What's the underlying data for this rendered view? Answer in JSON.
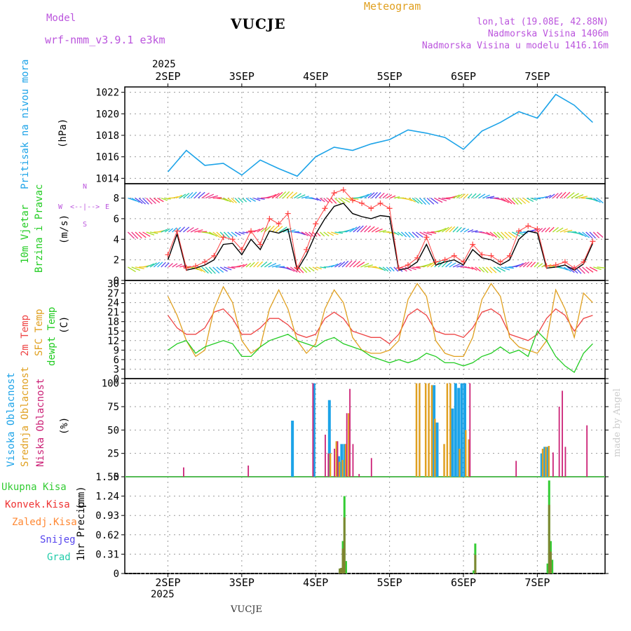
{
  "header": {
    "model_label": "Model",
    "model_name": "wrf-nmm_v3.9.1 e3km",
    "station": "VUCJE",
    "meteogram": "Meteogram",
    "lonlat": "lon,lat (19.08E, 42.88N)",
    "elevation": "Nadmorska Visina 1406m",
    "model_elevation": "Nadmorska Visina u modelu 1416.16m",
    "year": "2025",
    "footer_station": "VUCJE",
    "watermark": "made by Angel"
  },
  "colors": {
    "pressure": "#1ca3e8",
    "wind_speed": "#000000",
    "gust": "#ff4040",
    "t2m": "#ee4444",
    "sfc": "#e0a020",
    "dew": "#22cc22",
    "high": "#1ca3e8",
    "mid": "#e0a020",
    "low": "#cc2277",
    "precip_total": "#33cc33",
    "precip_conv": "#ee3333",
    "precip_frz": "#ff8833",
    "snow": "#5544ee",
    "hail": "#22ccaa",
    "purple": "#bb55dd"
  },
  "chart_data": [
    {
      "type": "line",
      "id": "pressure",
      "ylabel_main": "Pritisak na nivou mora",
      "ylabel_unit": "(hPa)",
      "ylim": [
        1013.5,
        1022.5
      ],
      "yticks": [
        1014,
        1016,
        1018,
        1020,
        1022
      ],
      "days": [
        "2SEP",
        "3SEP",
        "4SEP",
        "5SEP",
        "6SEP",
        "7SEP"
      ],
      "x_hours": [
        0,
        6,
        12,
        18,
        24,
        30,
        36,
        42,
        48,
        54,
        60,
        66,
        72,
        78,
        84,
        90,
        96,
        102,
        108,
        114,
        120,
        126,
        132,
        138
      ],
      "series": [
        {
          "name": "MSLP",
          "values": [
            1014.6,
            1016.6,
            1015.2,
            1015.4,
            1014.3,
            1015.7,
            1014.9,
            1014.2,
            1016.0,
            1016.9,
            1016.6,
            1017.2,
            1017.6,
            1018.5,
            1018.2,
            1017.8,
            1016.7,
            1018.4,
            1019.2,
            1020.2,
            1019.6,
            1021.8,
            1020.8,
            1019.2
          ]
        }
      ]
    },
    {
      "type": "line",
      "id": "wind",
      "ylabel_main": "10m Vjetar",
      "ylabel_main2": "Brzina i Pravac",
      "ylabel_unit": "(m/s)",
      "compass_labels": [
        "W",
        "<--|-->",
        "E",
        "S",
        "N"
      ],
      "ylim": [
        0,
        9.4
      ],
      "yticks": [
        0,
        2,
        4,
        6,
        8
      ],
      "x_hours": [
        0,
        3,
        6,
        9,
        12,
        15,
        18,
        21,
        24,
        27,
        30,
        33,
        36,
        39,
        42,
        45,
        48,
        51,
        54,
        57,
        60,
        63,
        66,
        69,
        72,
        75,
        78,
        81,
        84,
        87,
        90,
        93,
        96,
        99,
        102,
        105,
        108,
        111,
        114,
        117,
        120,
        123,
        126,
        129,
        132,
        135,
        138
      ],
      "series": [
        {
          "name": "speed",
          "values": [
            2.0,
            4.5,
            1.0,
            1.2,
            1.5,
            2.0,
            3.5,
            3.6,
            2.5,
            4.0,
            3.0,
            4.8,
            4.6,
            5.0,
            1.0,
            2.5,
            4.5,
            6.0,
            7.2,
            7.5,
            6.5,
            6.2,
            6.0,
            6.3,
            6.2,
            1.0,
            1.2,
            1.8,
            3.5,
            1.5,
            1.8,
            2.0,
            1.5,
            3.0,
            2.2,
            2.0,
            1.5,
            2.0,
            4.0,
            4.8,
            4.6,
            1.2,
            1.3,
            1.5,
            1.0,
            1.6,
            3.6
          ]
        },
        {
          "name": "gust",
          "values": [
            2.5,
            4.8,
            1.2,
            1.4,
            1.8,
            2.4,
            4.2,
            4.0,
            3.0,
            4.8,
            3.5,
            6.0,
            5.5,
            6.5,
            1.2,
            3.0,
            5.5,
            7.0,
            8.5,
            8.8,
            7.8,
            7.5,
            7.0,
            7.5,
            7.0,
            1.2,
            1.5,
            2.2,
            4.2,
            1.8,
            2.0,
            2.4,
            1.8,
            3.5,
            2.5,
            2.4,
            1.8,
            2.4,
            4.8,
            5.3,
            5.0,
            1.4,
            1.5,
            1.8,
            1.2,
            1.8,
            3.8
          ]
        }
      ]
    },
    {
      "type": "line",
      "id": "temperature",
      "ylabel_main": "2m Temp",
      "ylabel_main2": "SFC Temp",
      "ylabel_main3": "dewpt Temp",
      "ylabel_unit": "(C)",
      "ylim": [
        0,
        31
      ],
      "yticks": [
        0,
        3,
        6,
        9,
        12,
        15,
        18,
        21,
        24,
        27,
        30
      ],
      "x_hours": [
        0,
        3,
        6,
        9,
        12,
        15,
        18,
        21,
        24,
        27,
        30,
        33,
        36,
        39,
        42,
        45,
        48,
        51,
        54,
        57,
        60,
        63,
        66,
        69,
        72,
        75,
        78,
        81,
        84,
        87,
        90,
        93,
        96,
        99,
        102,
        105,
        108,
        111,
        114,
        117,
        120,
        123,
        126,
        129,
        132,
        135,
        138
      ],
      "series": [
        {
          "name": "2m Temp",
          "values": [
            20,
            16,
            14,
            14,
            16,
            21,
            22,
            19,
            14,
            14,
            16,
            19,
            19,
            17,
            14,
            13,
            14,
            19,
            21,
            19,
            15,
            14,
            13,
            13,
            11,
            14,
            20,
            22,
            20,
            15,
            14,
            14,
            13,
            16,
            21,
            22,
            20,
            14,
            13,
            12,
            14,
            19,
            22,
            20,
            15,
            19,
            20
          ]
        },
        {
          "name": "SFC Temp",
          "values": [
            26,
            20,
            12,
            7,
            9,
            22,
            29,
            24,
            12,
            8,
            10,
            22,
            28,
            22,
            12,
            8,
            11,
            22,
            28,
            24,
            13,
            9,
            8,
            8,
            9,
            12,
            25,
            30,
            26,
            12,
            8,
            7,
            7,
            13,
            25,
            30,
            26,
            13,
            10,
            9,
            8,
            12,
            28,
            22,
            13,
            27,
            24
          ]
        },
        {
          "name": "dewpt Temp",
          "values": [
            9,
            11,
            12,
            8,
            10,
            11,
            12,
            11,
            7,
            7,
            10,
            12,
            13,
            14,
            12,
            11,
            10,
            12,
            13,
            11,
            10,
            9,
            7,
            6,
            5,
            6,
            5,
            6,
            8,
            7,
            5,
            5,
            4,
            5,
            7,
            8,
            10,
            8,
            9,
            7,
            15,
            12,
            7,
            4,
            2,
            8,
            11
          ]
        }
      ]
    },
    {
      "type": "bar",
      "id": "cloud",
      "ylabel_main": "Visoka Oblacnost",
      "ylabel_main2": "Srednja Oblacnost",
      "ylabel_main3": "Niska Oblacnost",
      "ylabel_unit": "(%)",
      "ylim": [
        0,
        105
      ],
      "yticks": [
        0,
        25,
        50,
        75,
        100
      ],
      "series": [
        {
          "name": "Visoka",
          "bars": [
            [
              40,
              60
            ],
            [
              47,
              100
            ],
            [
              52,
              82
            ],
            [
              55,
              22
            ],
            [
              56,
              35
            ],
            [
              57,
              35
            ],
            [
              86,
              98
            ],
            [
              87,
              58
            ],
            [
              92,
              73
            ],
            [
              93,
              100
            ],
            [
              94,
              95
            ],
            [
              95,
              100
            ],
            [
              96,
              100
            ],
            [
              121,
              25
            ],
            [
              122,
              32
            ],
            [
              123,
              32
            ]
          ]
        },
        {
          "name": "Srednja",
          "bars": [
            [
              52,
              25
            ],
            [
              54,
              38
            ],
            [
              55,
              16
            ],
            [
              56,
              18
            ],
            [
              57,
              35
            ],
            [
              58,
              68
            ],
            [
              80,
              100
            ],
            [
              81,
              100
            ],
            [
              83,
              100
            ],
            [
              84,
              100
            ],
            [
              85,
              98
            ],
            [
              86,
              62
            ],
            [
              89,
              35
            ],
            [
              90,
              100
            ],
            [
              91,
              100
            ],
            [
              94,
              30
            ],
            [
              96,
              50
            ],
            [
              97,
              40
            ],
            [
              121,
              30
            ],
            [
              122,
              32
            ],
            [
              123,
              33
            ]
          ]
        },
        {
          "name": "Niska",
          "bars": [
            [
              4,
              10
            ],
            [
              25,
              12
            ],
            [
              46,
              100
            ],
            [
              50,
              45
            ],
            [
              51,
              25
            ],
            [
              53,
              30
            ],
            [
              54,
              38
            ],
            [
              57,
              68
            ],
            [
              58,
              94
            ],
            [
              59,
              35
            ],
            [
              61,
              3
            ],
            [
              65,
              20
            ],
            [
              97,
              100
            ],
            [
              112,
              17
            ],
            [
              124,
              26
            ],
            [
              126,
              75
            ],
            [
              127,
              92
            ],
            [
              128,
              32
            ],
            [
              135,
              55
            ]
          ]
        }
      ]
    },
    {
      "type": "bar",
      "id": "precip",
      "ylabel_main": "1hr Precip",
      "ylabel_unit": "(mm)",
      "legend": [
        "Ukupna Kisa",
        "Konvek.Kisa",
        "Zaledj.Kisa",
        "Snijeg",
        "Grad"
      ],
      "ylim": [
        0,
        1.55
      ],
      "yticks": [
        0,
        0.31,
        0.62,
        0.93,
        1.24,
        1.55
      ],
      "ytick_labels": [
        "0",
        "0.31",
        "0.62",
        "0.93",
        "1.24",
        "1.55"
      ],
      "series": [
        {
          "name": "Ukupna Kisa",
          "bars": [
            [
              55.5,
              0.08
            ],
            [
              56.0,
              0.09
            ],
            [
              56.5,
              0.52
            ],
            [
              57.0,
              1.24
            ],
            [
              57.5,
              0.2
            ],
            [
              99.0,
              0.05
            ],
            [
              99.5,
              0.48
            ],
            [
              123.0,
              0.16
            ],
            [
              123.5,
              1.49
            ],
            [
              124.0,
              0.52
            ],
            [
              124.5,
              0.22
            ]
          ]
        },
        {
          "name": "Konvek.Kisa",
          "bars": [
            [
              55.5,
              0.08
            ],
            [
              56.0,
              0.09
            ],
            [
              56.5,
              0.4
            ],
            [
              57.0,
              0.9
            ],
            [
              99.5,
              0.3
            ],
            [
              123.5,
              1.1
            ],
            [
              124.0,
              0.35
            ]
          ]
        }
      ]
    }
  ]
}
